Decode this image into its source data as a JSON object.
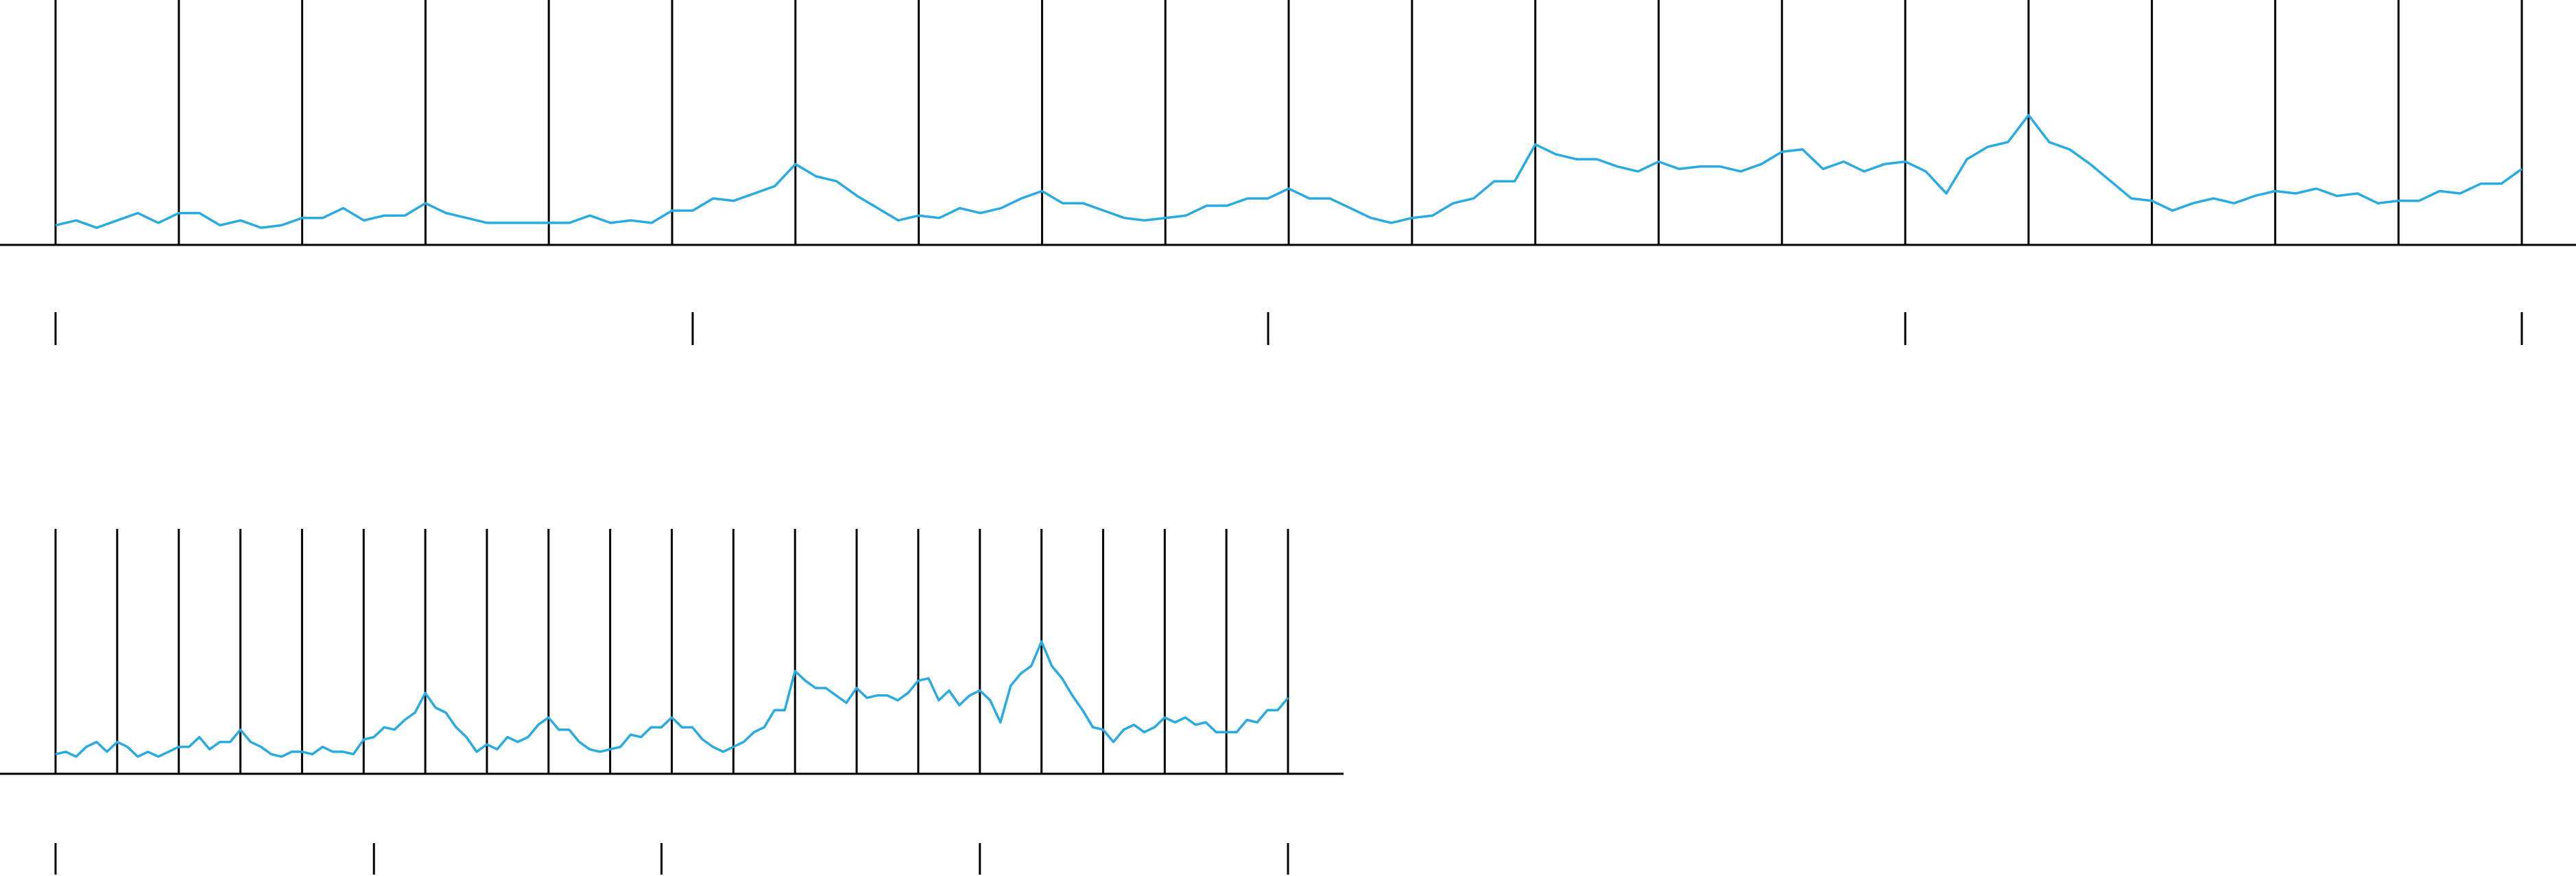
{
  "chart_data": [
    {
      "type": "line",
      "color": "#29abe2",
      "grid": true,
      "xlim": [
        0,
        120
      ],
      "ylim": [
        0,
        100
      ],
      "grid_xticks": [
        0,
        6,
        12,
        18,
        24,
        30,
        36,
        42,
        48,
        54,
        60,
        66,
        72,
        78,
        84,
        90,
        96,
        102,
        108,
        114,
        120
      ],
      "xticks": [
        0,
        31,
        59,
        90,
        120
      ],
      "x": [
        0,
        1,
        2,
        3,
        4,
        5,
        6,
        7,
        8,
        9,
        10,
        11,
        12,
        13,
        14,
        15,
        16,
        17,
        18,
        19,
        20,
        21,
        22,
        23,
        24,
        25,
        26,
        27,
        28,
        29,
        30,
        31,
        32,
        33,
        34,
        35,
        36,
        37,
        38,
        39,
        40,
        41,
        42,
        43,
        44,
        45,
        46,
        47,
        48,
        49,
        50,
        51,
        52,
        53,
        54,
        55,
        56,
        57,
        58,
        59,
        60,
        61,
        62,
        63,
        64,
        65,
        66,
        67,
        68,
        69,
        70,
        71,
        72,
        73,
        74,
        75,
        76,
        77,
        78,
        79,
        80,
        81,
        82,
        83,
        84,
        85,
        86,
        87,
        88,
        89,
        90,
        91,
        92,
        93,
        94,
        95,
        96,
        97,
        98,
        99,
        100,
        101,
        102,
        103,
        104,
        105,
        106,
        107,
        108,
        109,
        110,
        111,
        112,
        113,
        114,
        115,
        116,
        117,
        118,
        119,
        120
      ],
      "values": [
        8,
        10,
        7,
        10,
        13,
        9,
        13,
        13,
        8,
        10,
        7,
        8,
        11,
        11,
        15,
        10,
        12,
        12,
        17,
        13,
        11,
        9,
        9,
        9,
        9,
        9,
        12,
        9,
        10,
        9,
        14,
        14,
        19,
        18,
        21,
        24,
        33,
        28,
        26,
        20,
        15,
        10,
        12,
        11,
        15,
        13,
        15,
        19,
        22,
        17,
        17,
        14,
        11,
        10,
        11,
        12,
        16,
        16,
        19,
        19,
        23,
        19,
        19,
        15,
        11,
        9,
        11,
        12,
        17,
        19,
        26,
        26,
        41,
        37,
        35,
        35,
        32,
        30,
        34,
        31,
        32,
        32,
        30,
        33,
        38,
        39,
        31,
        34,
        30,
        33,
        34,
        30,
        21,
        35,
        40,
        42,
        53,
        42,
        39,
        33,
        26,
        19,
        18,
        14,
        17,
        19,
        17,
        20,
        22,
        21,
        23,
        20,
        21,
        17,
        18,
        18,
        22,
        21,
        25,
        25,
        31
      ]
    },
    {
      "type": "line",
      "color": "#29abe2",
      "grid": true,
      "xlim": [
        0,
        120
      ],
      "ylim": [
        0,
        100
      ],
      "grid_xticks": [
        0,
        6,
        12,
        18,
        24,
        30,
        36,
        42,
        48,
        54,
        60,
        66,
        72,
        78,
        84,
        90,
        96,
        102,
        108,
        114,
        120
      ],
      "xticks": [
        0,
        31,
        59,
        90,
        120
      ],
      "x": [
        0,
        1,
        2,
        3,
        4,
        5,
        6,
        7,
        8,
        9,
        10,
        11,
        12,
        13,
        14,
        15,
        16,
        17,
        18,
        19,
        20,
        21,
        22,
        23,
        24,
        25,
        26,
        27,
        28,
        29,
        30,
        31,
        32,
        33,
        34,
        35,
        36,
        37,
        38,
        39,
        40,
        41,
        42,
        43,
        44,
        45,
        46,
        47,
        48,
        49,
        50,
        51,
        52,
        53,
        54,
        55,
        56,
        57,
        58,
        59,
        60,
        61,
        62,
        63,
        64,
        65,
        66,
        67,
        68,
        69,
        70,
        71,
        72,
        73,
        74,
        75,
        76,
        77,
        78,
        79,
        80,
        81,
        82,
        83,
        84,
        85,
        86,
        87,
        88,
        89,
        90,
        91,
        92,
        93,
        94,
        95,
        96,
        97,
        98,
        99,
        100,
        101,
        102,
        103,
        104,
        105,
        106,
        107,
        108,
        109,
        110,
        111,
        112,
        113,
        114,
        115,
        116,
        117,
        118,
        119,
        120
      ],
      "values": [
        8,
        9,
        7,
        11,
        13,
        9,
        13,
        11,
        7,
        9,
        7,
        9,
        11,
        11,
        15,
        10,
        13,
        13,
        18,
        13,
        11,
        8,
        7,
        9,
        9,
        8,
        11,
        9,
        9,
        8,
        14,
        15,
        19,
        18,
        22,
        25,
        33,
        27,
        25,
        19,
        15,
        9,
        12,
        10,
        15,
        13,
        15,
        20,
        23,
        18,
        18,
        13,
        10,
        9,
        10,
        11,
        16,
        15,
        19,
        19,
        23,
        19,
        19,
        14,
        11,
        9,
        11,
        13,
        17,
        19,
        26,
        26,
        42,
        38,
        35,
        35,
        32,
        29,
        35,
        31,
        32,
        32,
        30,
        33,
        38,
        39,
        30,
        34,
        28,
        32,
        34,
        30,
        21,
        36,
        41,
        44,
        54,
        44,
        39,
        32,
        26,
        19,
        18,
        13,
        18,
        20,
        17,
        19,
        23,
        21,
        23,
        20,
        21,
        17,
        17,
        17,
        22,
        21,
        26,
        26,
        31
      ]
    }
  ]
}
